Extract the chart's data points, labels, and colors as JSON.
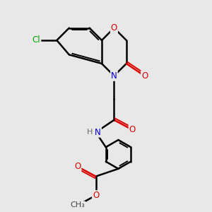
{
  "background_color": "#e8e8e8",
  "atom_colors": {
    "C": "#000000",
    "N": "#0000cc",
    "O": "#dd0000",
    "Cl": "#00aa00",
    "H": "#666666"
  },
  "bond_color": "#000000",
  "bond_width": 1.8,
  "figsize": [
    3.0,
    3.0
  ],
  "dpi": 100,
  "xlim": [
    0,
    10
  ],
  "ylim": [
    0,
    10
  ]
}
